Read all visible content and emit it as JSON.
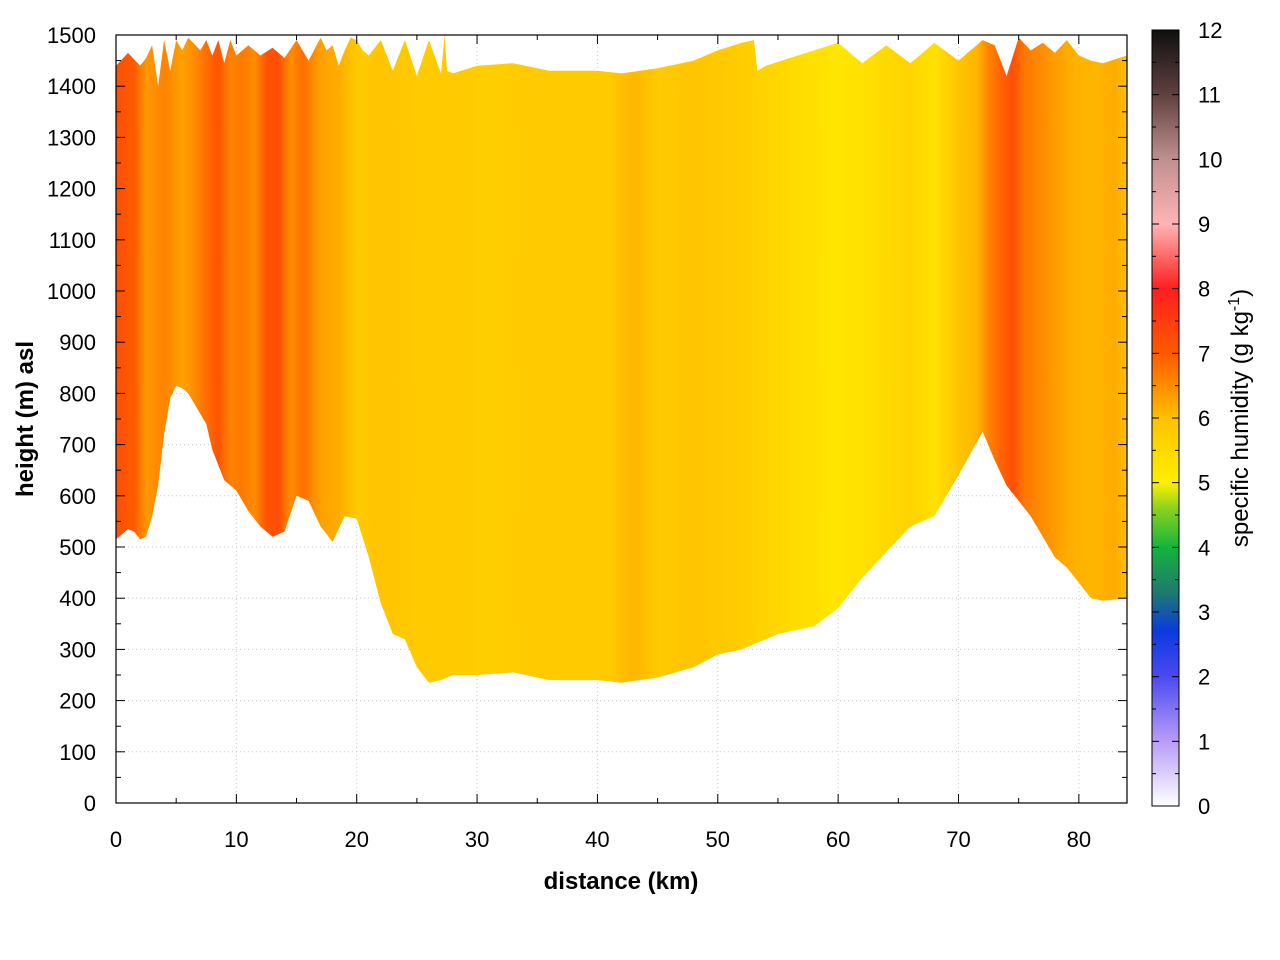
{
  "chart_data": {
    "type": "heatmap",
    "title": "",
    "xlabel": "distance (km)",
    "ylabel": "height (m) asl",
    "xlim": [
      0,
      84
    ],
    "ylim": [
      0,
      1500
    ],
    "x_ticks": [
      "0",
      "10",
      "20",
      "30",
      "40",
      "50",
      "60",
      "70",
      "80"
    ],
    "y_ticks": [
      "0",
      "100",
      "200",
      "300",
      "400",
      "500",
      "600",
      "700",
      "800",
      "900",
      "1000",
      "1100",
      "1200",
      "1300",
      "1400",
      "1500"
    ],
    "grid": true,
    "colorbar": {
      "label_main": "specific humidity (g kg",
      "label_sup": "-1",
      "label_end": ")",
      "range": [
        0,
        12
      ],
      "ticks": [
        "0",
        "1",
        "2",
        "3",
        "4",
        "5",
        "6",
        "7",
        "8",
        "9",
        "10",
        "11",
        "12"
      ],
      "stops": [
        {
          "v": 0,
          "color": "#ffffff"
        },
        {
          "v": 1,
          "color": "#b89cf5"
        },
        {
          "v": 2,
          "color": "#4a4af0"
        },
        {
          "v": 2.7,
          "color": "#0a3ae0"
        },
        {
          "v": 3.3,
          "color": "#1e7a6e"
        },
        {
          "v": 4,
          "color": "#14b43c"
        },
        {
          "v": 4.6,
          "color": "#8ad21e"
        },
        {
          "v": 5,
          "color": "#fff000"
        },
        {
          "v": 6,
          "color": "#ffc000"
        },
        {
          "v": 7,
          "color": "#ff5a00"
        },
        {
          "v": 8,
          "color": "#ff1e1e"
        },
        {
          "v": 9,
          "color": "#ffb4b4"
        },
        {
          "v": 10,
          "color": "#c09090"
        },
        {
          "v": 11,
          "color": "#604040"
        },
        {
          "v": 12,
          "color": "#101010"
        }
      ]
    },
    "terrain_km": [
      0,
      0.5,
      1,
      1.5,
      2,
      2.5,
      3,
      3.5,
      4,
      4.5,
      5,
      5.5,
      6,
      6.5,
      7,
      7.5,
      8,
      9,
      10,
      11,
      12,
      13,
      14,
      15,
      16,
      17,
      18,
      19,
      20,
      21,
      22,
      23,
      24,
      25,
      26,
      27,
      28,
      30,
      33,
      36,
      40,
      42,
      45,
      48,
      50,
      52,
      55,
      58,
      60,
      62,
      64,
      66,
      68,
      70,
      72,
      73,
      74,
      75,
      76,
      77,
      78,
      79,
      80,
      81,
      82,
      84
    ],
    "terrain_m": [
      515,
      525,
      535,
      530,
      515,
      520,
      560,
      620,
      720,
      790,
      815,
      810,
      800,
      780,
      760,
      740,
      690,
      630,
      610,
      570,
      540,
      520,
      530,
      600,
      590,
      540,
      510,
      560,
      555,
      480,
      390,
      330,
      320,
      265,
      235,
      240,
      250,
      250,
      255,
      240,
      240,
      235,
      245,
      265,
      290,
      300,
      330,
      345,
      380,
      440,
      490,
      540,
      560,
      640,
      725,
      670,
      620,
      590,
      560,
      520,
      480,
      460,
      430,
      400,
      395,
      400
    ],
    "top_km": [
      0,
      1,
      2,
      2.5,
      3,
      3.5,
      4,
      4.5,
      5,
      5.5,
      6,
      7,
      7.5,
      8,
      8.5,
      9,
      9.5,
      10,
      11,
      12,
      13,
      14,
      15,
      16,
      17,
      17.5,
      18,
      18.5,
      19,
      19.5,
      20,
      20.5,
      21,
      22,
      23,
      24,
      25,
      26,
      27,
      27.3,
      27.5,
      28,
      30,
      33,
      36,
      40,
      42,
      45,
      48,
      50,
      52,
      53,
      53.3,
      54,
      56,
      58,
      60,
      62,
      64,
      66,
      68,
      70,
      72,
      73,
      74,
      75,
      76,
      77,
      78,
      79,
      80,
      81,
      82,
      84
    ],
    "top_m": [
      1440,
      1465,
      1440,
      1455,
      1480,
      1400,
      1490,
      1430,
      1490,
      1470,
      1495,
      1470,
      1490,
      1460,
      1490,
      1445,
      1490,
      1460,
      1480,
      1460,
      1475,
      1455,
      1490,
      1450,
      1495,
      1470,
      1480,
      1440,
      1470,
      1495,
      1490,
      1470,
      1460,
      1490,
      1430,
      1490,
      1420,
      1490,
      1425,
      1500,
      1430,
      1425,
      1440,
      1445,
      1430,
      1430,
      1425,
      1435,
      1450,
      1470,
      1485,
      1490,
      1430,
      1440,
      1455,
      1470,
      1485,
      1445,
      1480,
      1445,
      1485,
      1450,
      1490,
      1480,
      1420,
      1495,
      1470,
      1485,
      1465,
      1490,
      1460,
      1450,
      1445,
      1460
    ],
    "humidity_km": [
      0,
      1.5,
      2.5,
      4,
      5.5,
      6.5,
      7.5,
      8.5,
      9.5,
      10.5,
      11.5,
      12.5,
      13.5,
      14.5,
      15.5,
      17,
      18.5,
      20,
      22,
      25,
      28,
      31,
      35,
      38,
      41,
      43,
      45,
      48,
      51,
      54,
      57,
      60,
      63,
      66,
      68,
      70,
      71.5,
      72.5,
      73.5,
      74.5,
      75.5,
      77,
      79,
      81,
      83,
      84
    ],
    "humidity_gkg": [
      7.2,
      7.0,
      6.4,
      6.6,
      6.3,
      6.5,
      6.8,
      7.1,
      6.6,
      6.7,
      6.5,
      7.1,
      7.2,
      6.5,
      6.8,
      6.3,
      6.2,
      5.8,
      5.9,
      5.8,
      5.8,
      5.7,
      5.8,
      5.8,
      5.8,
      6.1,
      5.8,
      5.9,
      5.8,
      5.6,
      5.4,
      5.2,
      5.4,
      5.6,
      5.3,
      5.9,
      6.1,
      6.6,
      6.9,
      7.2,
      6.7,
      6.5,
      6.2,
      6.1,
      6.2,
      6.0
    ]
  }
}
